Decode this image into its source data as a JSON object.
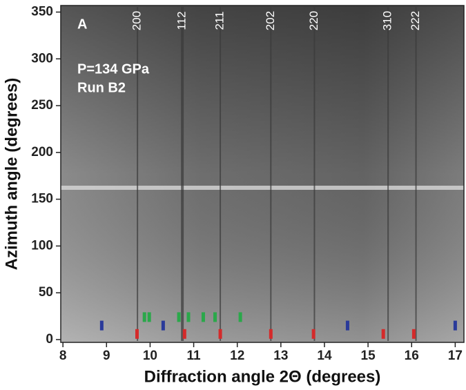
{
  "chart_data": {
    "type": "diffraction-image",
    "panel_label": "A",
    "annotations": [
      "P=134 GPa",
      "Run B2"
    ],
    "xlabel": "Diffraction angle 2Θ (degrees)",
    "ylabel": "Azimuth angle (degrees)",
    "xlim": [
      7.95,
      17.2
    ],
    "ylim": [
      -3,
      357
    ],
    "xticks": [
      8,
      9,
      10,
      11,
      12,
      13,
      14,
      15,
      16,
      17
    ],
    "yticks": [
      0,
      50,
      100,
      150,
      200,
      250,
      300,
      350
    ],
    "peaks": {
      "labels": [
        "200",
        "112",
        "211",
        "202",
        "220",
        "310",
        "222"
      ],
      "x": [
        9.71,
        10.74,
        11.61,
        12.77,
        13.77,
        15.46,
        16.1
      ]
    },
    "series": [
      {
        "color": "#d42a2a",
        "x": [
          9.7,
          10.79,
          11.61,
          12.77,
          13.75,
          15.35,
          16.05
        ]
      },
      {
        "color": "#2a3a9a",
        "x": [
          8.89,
          10.3,
          14.53,
          17.0
        ]
      },
      {
        "color": "#2aa84a",
        "x": [
          9.87,
          9.98,
          10.66,
          10.88,
          11.22,
          11.49,
          12.07
        ]
      }
    ]
  }
}
